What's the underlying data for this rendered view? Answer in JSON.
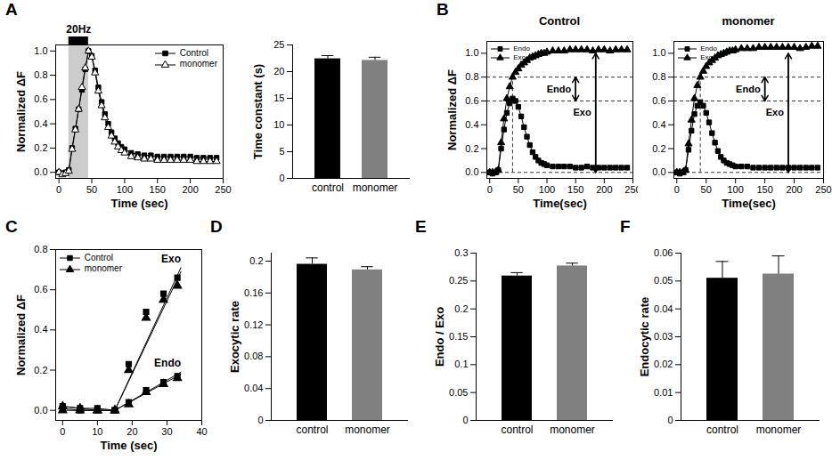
{
  "chart_data": [
    {
      "panel": "A",
      "type": "line",
      "x_label": "Time (sec)",
      "y_label": "Normalized ΔF",
      "grid": false,
      "legend": "top-right",
      "x": [
        0,
        5,
        10,
        15,
        20,
        25,
        30,
        35,
        40,
        45,
        50,
        55,
        60,
        65,
        70,
        75,
        80,
        85,
        90,
        95,
        100,
        110,
        120,
        130,
        140,
        150,
        160,
        170,
        180,
        190,
        200,
        210,
        220,
        230,
        240
      ],
      "series": [
        {
          "name": "Control",
          "color": "#000000",
          "marker": "square",
          "values": [
            0,
            -0.01,
            0,
            0.02,
            0.2,
            0.36,
            0.52,
            0.68,
            0.85,
            1.0,
            0.96,
            0.84,
            0.7,
            0.58,
            0.48,
            0.4,
            0.33,
            0.28,
            0.24,
            0.21,
            0.19,
            0.16,
            0.15,
            0.14,
            0.14,
            0.13,
            0.13,
            0.13,
            0.13,
            0.13,
            0.13,
            0.12,
            0.12,
            0.12,
            0.12
          ]
        },
        {
          "name": "monomer",
          "color": "#000000",
          "marker": "triangle-open",
          "values": [
            0,
            -0.02,
            -0.01,
            0.01,
            0.19,
            0.35,
            0.52,
            0.7,
            0.86,
            1.0,
            0.95,
            0.82,
            0.67,
            0.55,
            0.45,
            0.37,
            0.3,
            0.25,
            0.21,
            0.18,
            0.16,
            0.13,
            0.12,
            0.11,
            0.11,
            0.1,
            0.1,
            0.1,
            0.1,
            0.1,
            0.1,
            0.09,
            0.09,
            0.09,
            0.09
          ]
        }
      ],
      "stimulus": {
        "label": "20Hz",
        "from": 15,
        "to": 45
      },
      "xlim": [
        -5,
        250
      ],
      "xticks": [
        0,
        50,
        100,
        150,
        200,
        250
      ],
      "ylim": [
        -0.05,
        1.05
      ],
      "yticks": [
        {
          "value": 0,
          "label": "0.0"
        },
        0.2,
        0.4,
        0.6,
        0.8,
        {
          "value": 1,
          "label": "1.0"
        }
      ]
    },
    {
      "type": "bar",
      "y_label": "Time constant (s)",
      "grid": false,
      "categories": [
        "control",
        "monomer"
      ],
      "values": [
        22.4,
        22.1
      ],
      "errors": [
        0.6,
        0.6
      ],
      "colors": [
        "#000000",
        "#808080"
      ],
      "ylim": [
        0,
        25
      ],
      "yticks": [
        0,
        5,
        10,
        15,
        20,
        25
      ]
    },
    {
      "panel": "B",
      "title": "Control",
      "type": "line",
      "x_label": "Time(sec)",
      "y_label": "Normalized ΔF",
      "grid": false,
      "legend": "top-left",
      "x": [
        0,
        5,
        10,
        15,
        20,
        25,
        30,
        35,
        40,
        45,
        50,
        55,
        60,
        65,
        70,
        75,
        80,
        85,
        90,
        95,
        100,
        110,
        120,
        130,
        140,
        150,
        160,
        170,
        180,
        190,
        200,
        210,
        220,
        230,
        240
      ],
      "series": [
        {
          "name": "Endo",
          "color": "#000000",
          "marker": "square",
          "values": [
            0,
            -0.01,
            0,
            0.02,
            0.2,
            0.36,
            0.5,
            0.58,
            0.62,
            0.6,
            0.55,
            0.47,
            0.38,
            0.3,
            0.23,
            0.17,
            0.13,
            0.1,
            0.08,
            0.07,
            0.06,
            0.05,
            0.05,
            0.05,
            0.05,
            0.04,
            0.04,
            0.05,
            0.04,
            0.04,
            0.04,
            0.04,
            0.04,
            0.04,
            0.04
          ]
        },
        {
          "name": "Exo",
          "color": "#000000",
          "marker": "triangle",
          "values": [
            0,
            0,
            0,
            0.02,
            0.25,
            0.45,
            0.62,
            0.72,
            0.8,
            0.84,
            0.87,
            0.9,
            0.92,
            0.94,
            0.96,
            0.97,
            0.98,
            0.99,
            1.0,
            1.0,
            1.01,
            1.02,
            1.02,
            1.02,
            1.03,
            1.03,
            1.03,
            1.03,
            1.02,
            1.03,
            1.03,
            1.02,
            1.03,
            1.03,
            1.03
          ]
        }
      ],
      "hlines": [
        0.8,
        0.6,
        0
      ],
      "vline": 40,
      "arrows": [
        {
          "label": "Endo",
          "x": 150,
          "from": 0.6,
          "to": 0.8
        },
        {
          "label": "Exo",
          "x": 185,
          "from": 0,
          "to": 1.0
        }
      ],
      "xlim": [
        -5,
        250
      ],
      "xticks": [
        0,
        50,
        100,
        150,
        200,
        250
      ],
      "ylim": [
        -0.05,
        1.1
      ],
      "yticks": [
        {
          "value": 0,
          "label": "0.0"
        },
        0.2,
        0.4,
        0.6,
        0.8,
        {
          "value": 1,
          "label": "1.0"
        }
      ]
    },
    {
      "title": "monomer",
      "type": "line",
      "x_label": "Time(sec)",
      "grid": false,
      "legend": "top-left",
      "x": [
        0,
        5,
        10,
        15,
        20,
        25,
        30,
        35,
        40,
        45,
        50,
        55,
        60,
        65,
        70,
        75,
        80,
        85,
        90,
        95,
        100,
        110,
        120,
        130,
        140,
        150,
        160,
        170,
        180,
        190,
        200,
        210,
        220,
        230,
        240
      ],
      "series": [
        {
          "name": "Endo",
          "color": "#000000",
          "marker": "square",
          "values": [
            0,
            -0.01,
            0,
            0.02,
            0.19,
            0.35,
            0.49,
            0.56,
            0.59,
            0.56,
            0.5,
            0.42,
            0.33,
            0.25,
            0.18,
            0.13,
            0.1,
            0.08,
            0.07,
            0.06,
            0.05,
            0.05,
            0.05,
            0.04,
            0.04,
            0.04,
            0.04,
            0.04,
            0.04,
            0.04,
            0.04,
            0.04,
            0.04,
            0.04,
            0.04
          ]
        },
        {
          "name": "Exo",
          "color": "#000000",
          "marker": "triangle",
          "values": [
            0,
            0,
            0,
            0.02,
            0.24,
            0.44,
            0.62,
            0.73,
            0.8,
            0.85,
            0.89,
            0.92,
            0.94,
            0.96,
            0.98,
            0.99,
            1.0,
            1.01,
            1.02,
            1.02,
            1.03,
            1.04,
            1.04,
            1.04,
            1.05,
            1.05,
            1.05,
            1.05,
            1.05,
            1.05,
            1.05,
            1.04,
            1.05,
            1.06,
            1.06
          ]
        }
      ],
      "hlines": [
        0.8,
        0.6,
        0
      ],
      "vline": 40,
      "arrows": [
        {
          "label": "Endo",
          "x": 150,
          "from": 0.6,
          "to": 0.8
        },
        {
          "label": "Exo",
          "x": 190,
          "from": 0,
          "to": 1.0
        }
      ],
      "xlim": [
        -5,
        250
      ],
      "xticks": [
        0,
        50,
        100,
        150,
        200,
        250
      ],
      "ylim": [
        -0.05,
        1.1
      ],
      "yticks": [
        {
          "value": 0,
          "label": "0.0"
        },
        0.2,
        0.4,
        0.6,
        0.8,
        {
          "value": 1,
          "label": "1.0"
        }
      ]
    },
    {
      "panel": "C",
      "type": "line",
      "x_label": "Time (sec)",
      "y_label": "Normalized ΔF",
      "grid": false,
      "legend": "top-left",
      "x": [
        0,
        5,
        10,
        15,
        19,
        24,
        29,
        33
      ],
      "series": [
        {
          "name": "Control",
          "label": "Exo",
          "color": "#000000",
          "marker": "square",
          "values": [
            0.02,
            0.01,
            0.01,
            0,
            0.23,
            0.49,
            0.58,
            0.66
          ],
          "fit": {
            "x": [
              15,
              34
            ],
            "values": [
              0,
              0.71
            ]
          }
        },
        {
          "name": "monomer",
          "label": "Exo",
          "color": "#000000",
          "marker": "triangle",
          "values": [
            0.02,
            0.01,
            0,
            0,
            0.2,
            0.46,
            0.55,
            0.62
          ],
          "fit": {
            "x": [
              15,
              34
            ],
            "values": [
              0,
              0.69
            ]
          }
        },
        {
          "name": "Control",
          "label": "Endo",
          "color": "#000000",
          "marker": "square",
          "values": [
            0.01,
            0,
            0,
            0,
            0.04,
            0.1,
            0.14,
            0.17
          ],
          "fit": {
            "x": [
              15,
              34
            ],
            "values": [
              0,
              0.19
            ]
          }
        },
        {
          "name": "monomer",
          "label": "Endo",
          "color": "#000000",
          "marker": "triangle",
          "values": [
            0,
            0,
            0,
            0,
            0.03,
            0.09,
            0.13,
            0.16
          ],
          "fit": {
            "x": [
              15,
              34
            ],
            "values": [
              0,
              0.18
            ]
          }
        }
      ],
      "xlim": [
        -2,
        40
      ],
      "xticks": [
        0,
        10,
        20,
        30,
        40
      ],
      "ylim": [
        -0.05,
        0.8
      ],
      "yticks": [
        {
          "value": 0,
          "label": "0.0"
        },
        0.2,
        0.4,
        0.6,
        0.8
      ]
    },
    {
      "panel": "D",
      "type": "bar",
      "y_label": "Exocytic rate",
      "grid": false,
      "categories": [
        "control",
        "monomer"
      ],
      "values": [
        0.196,
        0.189
      ],
      "errors": [
        0.008,
        0.004
      ],
      "colors": [
        "#000000",
        "#808080"
      ],
      "ylim": [
        0,
        0.21
      ],
      "yticks": [
        0,
        0.04,
        0.08,
        0.12,
        0.16,
        0.2
      ]
    },
    {
      "panel": "E",
      "type": "bar",
      "y_label": "Endo / Exo",
      "grid": false,
      "categories": [
        "control",
        "monomer"
      ],
      "values": [
        0.259,
        0.277
      ],
      "errors": [
        0.006,
        0.005
      ],
      "colors": [
        "#000000",
        "#808080"
      ],
      "ylim": [
        0,
        0.3
      ],
      "yticks": [
        0,
        0.05,
        0.1,
        0.15,
        0.2,
        0.25,
        0.3
      ]
    },
    {
      "panel": "F",
      "type": "bar",
      "y_label": "Endocytic rate",
      "grid": false,
      "categories": [
        "control",
        "monomer"
      ],
      "values": [
        0.051,
        0.0525
      ],
      "errors": [
        0.006,
        0.0065
      ],
      "colors": [
        "#000000",
        "#808080"
      ],
      "ylim": [
        0,
        0.06
      ],
      "yticks": [
        0,
        0.01,
        0.02,
        0.03,
        0.04,
        0.05,
        0.06
      ]
    }
  ]
}
